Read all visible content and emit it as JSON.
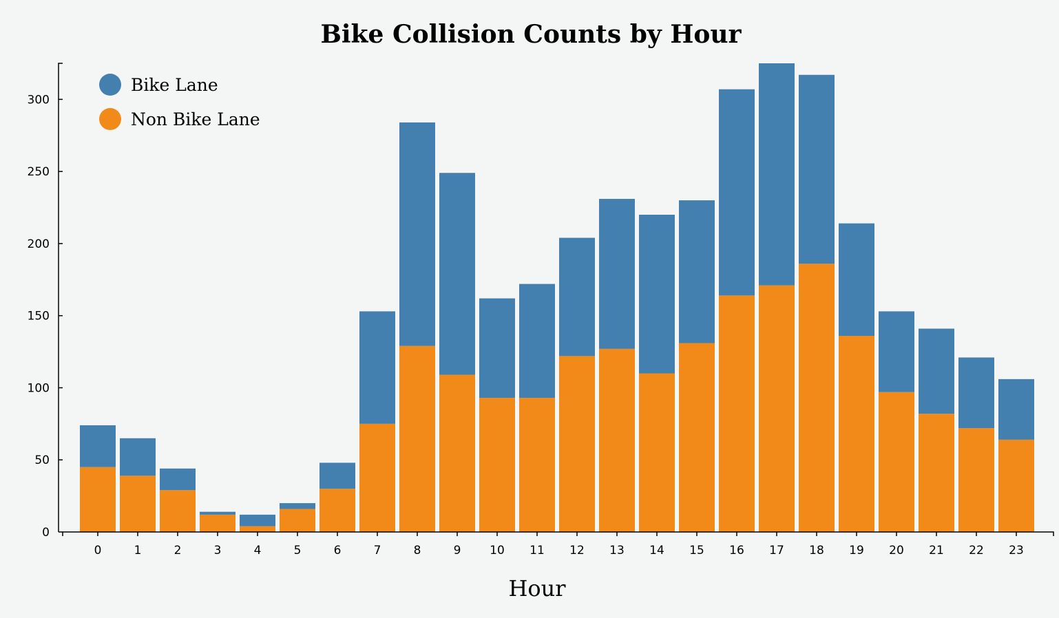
{
  "chart_data": {
    "type": "bar",
    "stacked": true,
    "title": "Bike Collision Counts by Hour",
    "xlabel": "Hour",
    "ylabel": "",
    "ylim": [
      0,
      325
    ],
    "yticks": [
      0,
      50,
      100,
      150,
      200,
      250,
      300
    ],
    "categories": [
      "0",
      "1",
      "2",
      "3",
      "4",
      "5",
      "6",
      "7",
      "8",
      "9",
      "10",
      "11",
      "12",
      "13",
      "14",
      "15",
      "16",
      "17",
      "18",
      "19",
      "20",
      "21",
      "22",
      "23"
    ],
    "series": [
      {
        "name": "Non Bike Lane",
        "color": "#f28a1a",
        "values": [
          45,
          39,
          29,
          12,
          4,
          16,
          30,
          75,
          129,
          109,
          93,
          93,
          122,
          127,
          110,
          131,
          164,
          171,
          186,
          136,
          97,
          82,
          72,
          64
        ]
      },
      {
        "name": "Bike Lane",
        "color": "#437faf",
        "values": [
          29,
          26,
          15,
          2,
          8,
          4,
          18,
          78,
          155,
          140,
          69,
          79,
          82,
          104,
          110,
          99,
          143,
          154,
          131,
          78,
          56,
          59,
          49,
          42
        ]
      }
    ],
    "legend": {
      "placement": "top-left",
      "entries": [
        "Bike Lane",
        "Non Bike Lane"
      ]
    }
  }
}
